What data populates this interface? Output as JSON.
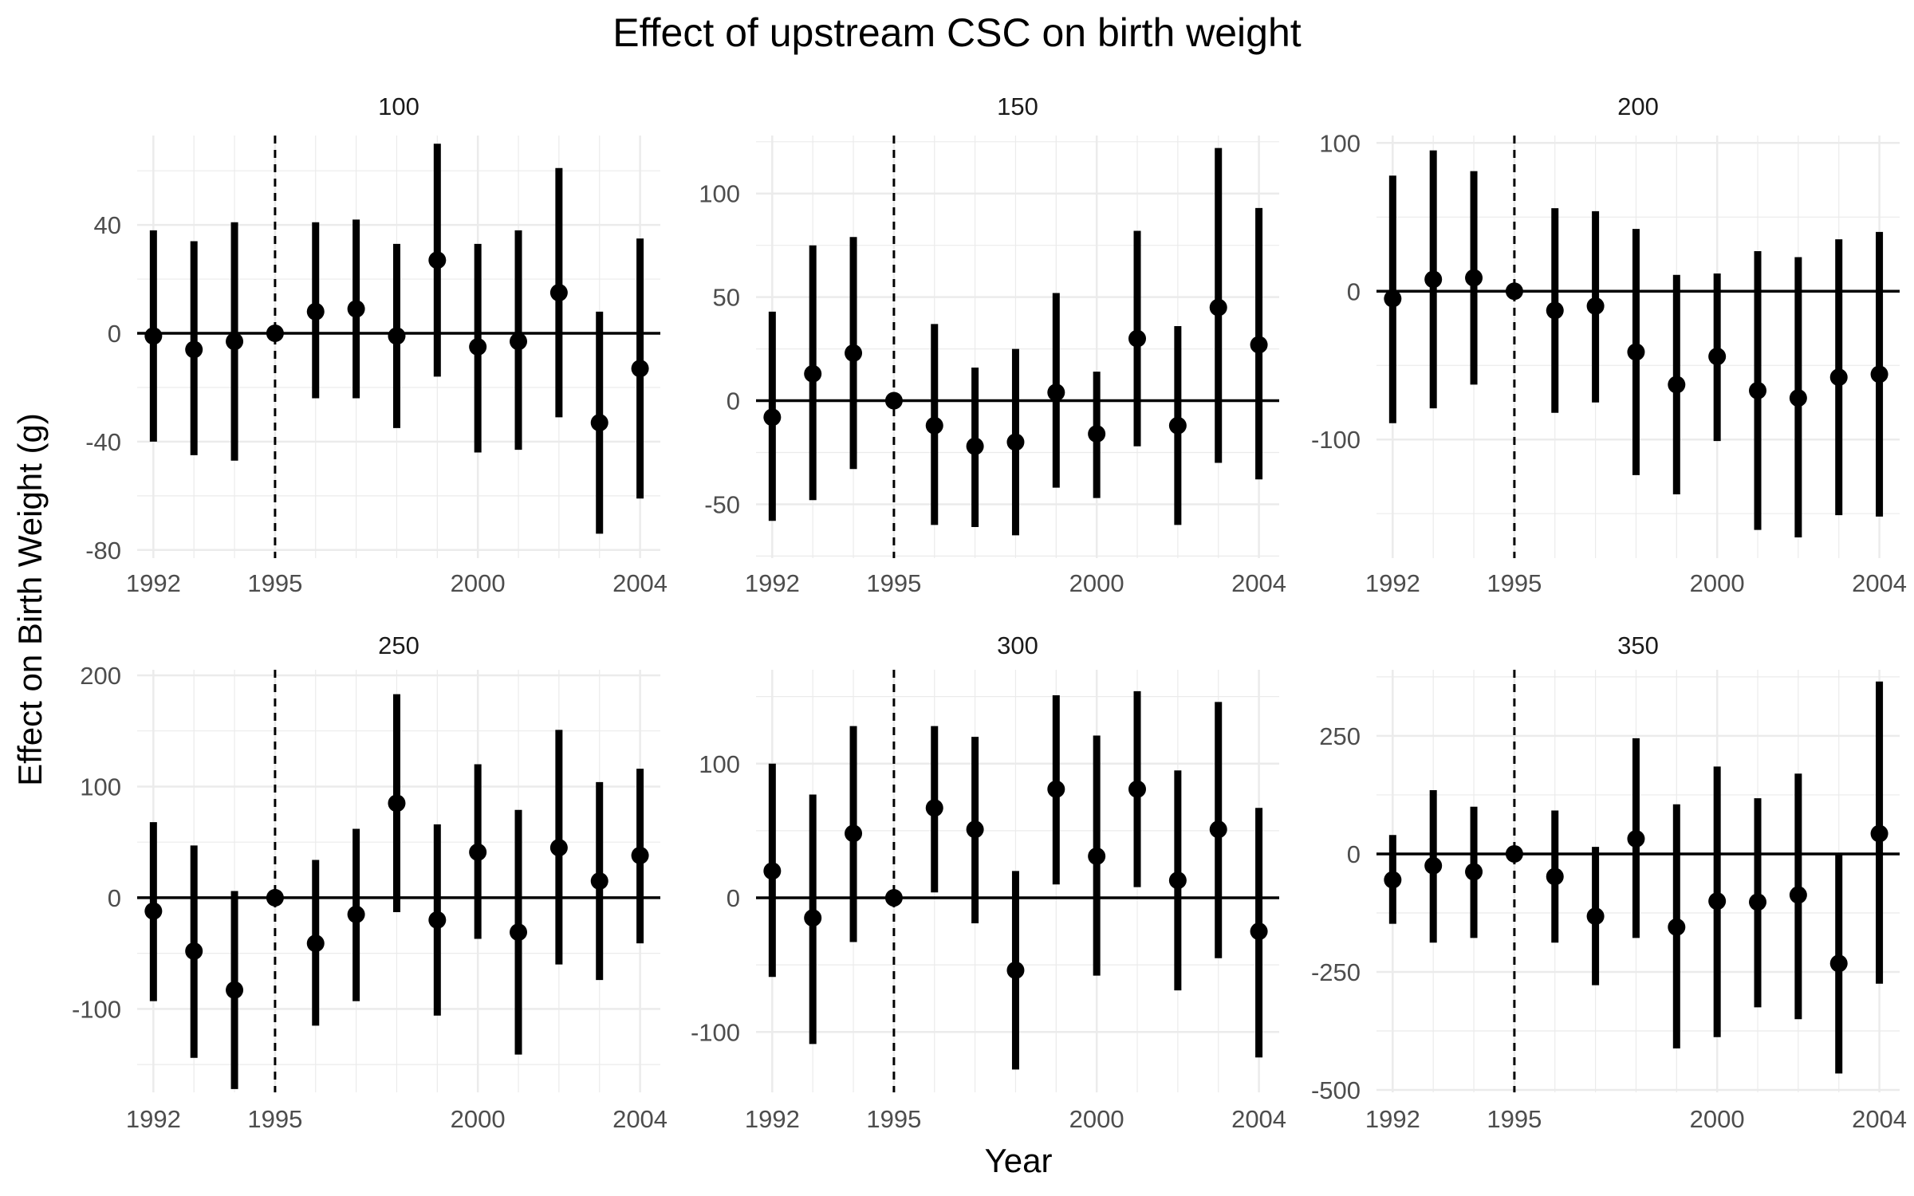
{
  "chart_data": {
    "type": "errorbar",
    "title": "Effect of upstream CSC on birth weight",
    "xlabel": "Year",
    "ylabel": "Effect on Birth Weight (g)",
    "reference_year": 1995,
    "x_ticks": [
      1992,
      1995,
      2000,
      2004
    ],
    "xlim": [
      1991.6,
      2004.5
    ],
    "grid": true,
    "facets": [
      {
        "label": "100",
        "ylim": [
          -83,
          73
        ],
        "y_ticks": [
          -80,
          -40,
          0,
          40
        ],
        "years": [
          1992,
          1993,
          1994,
          1995,
          1996,
          1997,
          1998,
          1999,
          2000,
          2001,
          2002,
          2003,
          2004
        ],
        "estimate": [
          -1,
          -6,
          -3,
          0,
          8,
          9,
          -1,
          27,
          -5,
          -3,
          15,
          -33,
          -13
        ],
        "lower": [
          -40,
          -45,
          -47,
          0,
          -24,
          -24,
          -35,
          -16,
          -44,
          -43,
          -31,
          -74,
          -61
        ],
        "upper": [
          38,
          34,
          41,
          0,
          41,
          42,
          33,
          70,
          33,
          38,
          61,
          8,
          35
        ]
      },
      {
        "label": "150",
        "ylim": [
          -76,
          128
        ],
        "y_ticks": [
          -50,
          0,
          50,
          100
        ],
        "years": [
          1992,
          1993,
          1994,
          1995,
          1996,
          1997,
          1998,
          1999,
          2000,
          2001,
          2002,
          2003,
          2004
        ],
        "estimate": [
          -8,
          13,
          23,
          0,
          -12,
          -22,
          -20,
          4,
          -16,
          30,
          -12,
          45,
          27
        ],
        "lower": [
          -58,
          -48,
          -33,
          0,
          -60,
          -61,
          -65,
          -42,
          -47,
          -22,
          -60,
          -30,
          -38
        ],
        "upper": [
          43,
          75,
          79,
          0,
          37,
          16,
          25,
          52,
          14,
          82,
          36,
          122,
          93
        ]
      },
      {
        "label": "200",
        "ylim": [
          -180,
          105
        ],
        "y_ticks": [
          -100,
          0,
          100
        ],
        "years": [
          1992,
          1993,
          1994,
          1995,
          1996,
          1997,
          1998,
          1999,
          2000,
          2001,
          2002,
          2003,
          2004
        ],
        "estimate": [
          -5,
          8,
          9,
          0,
          -13,
          -10,
          -41,
          -63,
          -44,
          -67,
          -72,
          -58,
          -56
        ],
        "lower": [
          -89,
          -79,
          -63,
          0,
          -82,
          -75,
          -124,
          -137,
          -101,
          -161,
          -166,
          -151,
          -152
        ],
        "upper": [
          78,
          95,
          81,
          0,
          56,
          54,
          42,
          11,
          12,
          27,
          23,
          35,
          40
        ]
      },
      {
        "label": "250",
        "ylim": [
          -175,
          205
        ],
        "y_ticks": [
          -100,
          0,
          100,
          200
        ],
        "years": [
          1992,
          1993,
          1994,
          1995,
          1996,
          1997,
          1998,
          1999,
          2000,
          2001,
          2002,
          2003,
          2004
        ],
        "estimate": [
          -12,
          -48,
          -83,
          0,
          -41,
          -15,
          85,
          -20,
          41,
          -31,
          45,
          15,
          38
        ],
        "lower": [
          -93,
          -144,
          -172,
          0,
          -115,
          -93,
          -13,
          -106,
          -37,
          -141,
          -60,
          -74,
          -41
        ],
        "upper": [
          68,
          47,
          6,
          0,
          34,
          62,
          183,
          66,
          120,
          79,
          151,
          104,
          116
        ]
      },
      {
        "label": "300",
        "ylim": [
          -145,
          170
        ],
        "y_ticks": [
          -100,
          0,
          100
        ],
        "years": [
          1992,
          1993,
          1994,
          1995,
          1996,
          1997,
          1998,
          1999,
          2000,
          2001,
          2002,
          2003,
          2004
        ],
        "estimate": [
          20,
          -15,
          48,
          0,
          67,
          51,
          -54,
          81,
          31,
          81,
          13,
          51,
          -25
        ],
        "lower": [
          -59,
          -109,
          -33,
          0,
          4,
          -19,
          -128,
          10,
          -58,
          8,
          -69,
          -45,
          -119
        ],
        "upper": [
          100,
          77,
          128,
          0,
          128,
          120,
          20,
          151,
          121,
          154,
          95,
          146,
          67
        ]
      },
      {
        "label": "350",
        "ylim": [
          -505,
          390
        ],
        "y_ticks": [
          -500,
          -250,
          0,
          250
        ],
        "years": [
          1992,
          1993,
          1994,
          1995,
          1996,
          1997,
          1998,
          1999,
          2000,
          2001,
          2002,
          2003,
          2004
        ],
        "estimate": [
          -55,
          -25,
          -38,
          0,
          -48,
          -132,
          32,
          -155,
          -100,
          -102,
          -87,
          -232,
          43
        ],
        "lower": [
          -148,
          -188,
          -178,
          0,
          -188,
          -278,
          -178,
          -412,
          -388,
          -325,
          -350,
          -465,
          -275
        ],
        "upper": [
          40,
          135,
          100,
          0,
          92,
          15,
          245,
          105,
          185,
          118,
          170,
          0,
          365
        ]
      }
    ]
  }
}
